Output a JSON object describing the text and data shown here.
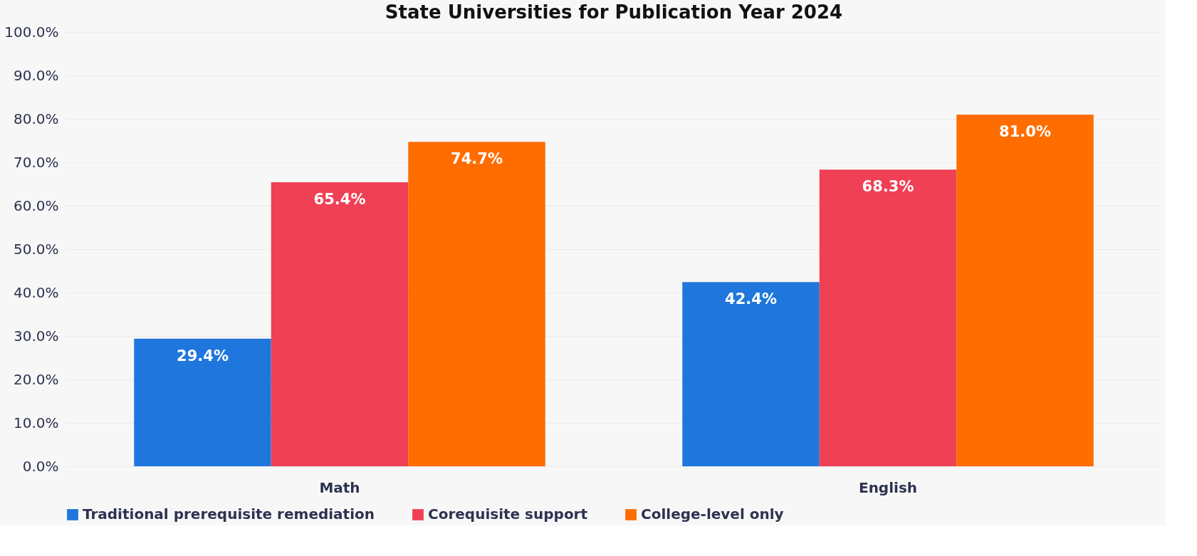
{
  "chart_data": {
    "type": "bar",
    "title": "State Universities for Publication Year 2024",
    "categories": [
      "Math",
      "English"
    ],
    "series": [
      {
        "name": "Traditional prerequisite remediation",
        "color": "#1f77dd",
        "values": [
          29.4,
          42.4
        ],
        "value_labels": [
          "29.4%",
          "42.4%"
        ]
      },
      {
        "name": "Corequisite support",
        "color": "#ef4055",
        "values": [
          65.4,
          68.3
        ],
        "value_labels": [
          "65.4%",
          "68.3%"
        ]
      },
      {
        "name": "College-level only",
        "color": "#ff6d00",
        "values": [
          74.7,
          81.0
        ],
        "value_labels": [
          "74.7%",
          "81.0%"
        ]
      }
    ],
    "ylim": [
      0,
      100
    ],
    "yticks": [
      {
        "value": 0,
        "label": "0.0%"
      },
      {
        "value": 10,
        "label": "10.0%"
      },
      {
        "value": 20,
        "label": "20.0%"
      },
      {
        "value": 30,
        "label": "30.0%"
      },
      {
        "value": 40,
        "label": "40.0%"
      },
      {
        "value": 50,
        "label": "50.0%"
      },
      {
        "value": 60,
        "label": "60.0%"
      },
      {
        "value": 70,
        "label": "70.0%"
      },
      {
        "value": 80,
        "label": "80.0%"
      },
      {
        "value": 90,
        "label": "90.0%"
      },
      {
        "value": 100,
        "label": "100.0%"
      }
    ],
    "grid": "y",
    "legend": "bottom"
  }
}
